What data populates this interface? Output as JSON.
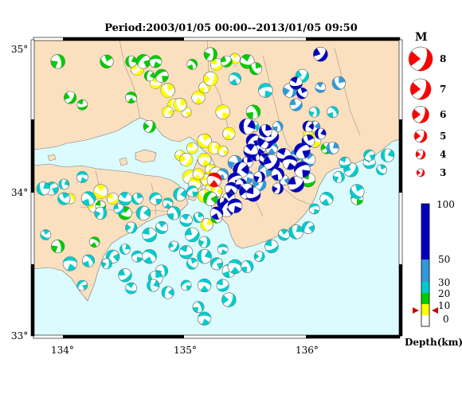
{
  "title": "Period:2003/01/05 00:00--2013/01/05 09:50",
  "axes": {
    "lat_labels": [
      "35°",
      "34°",
      "33°"
    ],
    "lon_labels": [
      "134°",
      "135°",
      "136°"
    ]
  },
  "magnitude_legend": {
    "title": "M",
    "items": [
      "8",
      "7",
      "6",
      "5",
      "4",
      "3"
    ]
  },
  "depth_scale": {
    "title": "Depth(km)",
    "ticks": [
      "100",
      "50",
      "30",
      "20",
      "10",
      "0"
    ]
  },
  "colors": {
    "sea": "#dcfbff",
    "land": "#fae0bf",
    "quake_red": "#ff0000",
    "depth_0_10": "#ffff00",
    "depth_10_20": "#00cc00",
    "depth_20_30": "#00cccc",
    "depth_30_50": "#2f9ad8",
    "depth_50_100": "#0000c0"
  },
  "chart_data": {
    "type": "scatter",
    "title": "Period:2003/01/05 00:00--2013/01/05 09:50",
    "xlim": [
      133.8,
      136.8
    ],
    "ylim": [
      33.0,
      35.05
    ],
    "series": [
      {
        "name": "0-10",
        "points": [
          [
            134.65,
            34.85
          ],
          [
            134.8,
            34.75
          ],
          [
            134.9,
            34.7
          ],
          [
            134.95,
            34.6
          ],
          [
            135.05,
            34.55
          ],
          [
            135.15,
            34.65
          ],
          [
            135.2,
            34.72
          ],
          [
            135.25,
            34.78
          ],
          [
            135.3,
            34.88
          ],
          [
            135.45,
            34.92
          ],
          [
            135.0,
            34.6
          ],
          [
            134.9,
            34.55
          ],
          [
            135.35,
            34.55
          ],
          [
            135.4,
            34.4
          ],
          [
            135.0,
            34.25
          ],
          [
            135.05,
            34.22
          ],
          [
            135.1,
            34.3
          ],
          [
            135.2,
            34.35
          ],
          [
            135.28,
            34.3
          ],
          [
            135.35,
            34.28
          ],
          [
            135.2,
            34.22
          ],
          [
            135.25,
            34.15
          ],
          [
            135.3,
            34.12
          ],
          [
            135.22,
            34.08
          ],
          [
            135.25,
            34.02
          ],
          [
            135.2,
            33.97
          ],
          [
            135.3,
            34.0
          ],
          [
            135.08,
            34.1
          ],
          [
            135.12,
            34.05
          ],
          [
            134.1,
            33.95
          ],
          [
            134.3,
            33.9
          ],
          [
            134.45,
            33.95
          ],
          [
            134.35,
            34.0
          ],
          [
            135.22,
            33.77
          ],
          [
            136.05,
            34.4
          ],
          [
            136.1,
            34.35
          ],
          [
            135.15,
            34.12
          ]
        ]
      },
      {
        "name": "10-20",
        "points": [
          [
            134.0,
            34.9
          ],
          [
            134.1,
            34.65
          ],
          [
            134.2,
            34.6
          ],
          [
            134.4,
            34.9
          ],
          [
            134.6,
            34.9
          ],
          [
            134.7,
            34.9
          ],
          [
            134.8,
            34.9
          ],
          [
            135.1,
            34.88
          ],
          [
            135.25,
            34.95
          ],
          [
            135.38,
            34.9
          ],
          [
            135.55,
            34.9
          ],
          [
            135.62,
            34.85
          ],
          [
            134.75,
            34.8
          ],
          [
            134.85,
            34.8
          ],
          [
            134.6,
            34.65
          ],
          [
            135.6,
            34.55
          ],
          [
            134.75,
            34.45
          ],
          [
            134.35,
            33.9
          ],
          [
            134.55,
            33.85
          ],
          [
            135.3,
            33.82
          ],
          [
            135.25,
            33.95
          ],
          [
            136.45,
            33.95
          ],
          [
            134.3,
            33.65
          ],
          [
            134.0,
            33.62
          ],
          [
            136.2,
            34.3
          ],
          [
            136.05,
            34.08
          ]
        ]
      },
      {
        "name": "20-30",
        "points": [
          [
            134.05,
            33.95
          ],
          [
            134.05,
            34.05
          ],
          [
            133.95,
            34.02
          ],
          [
            134.2,
            34.1
          ],
          [
            134.25,
            33.95
          ],
          [
            134.35,
            33.85
          ],
          [
            134.5,
            33.88
          ],
          [
            134.55,
            33.95
          ],
          [
            134.65,
            33.95
          ],
          [
            134.7,
            33.85
          ],
          [
            134.8,
            33.95
          ],
          [
            134.9,
            33.92
          ],
          [
            134.95,
            33.85
          ],
          [
            134.6,
            33.75
          ],
          [
            134.75,
            33.7
          ],
          [
            134.85,
            33.75
          ],
          [
            134.55,
            33.6
          ],
          [
            134.45,
            33.55
          ],
          [
            134.65,
            33.55
          ],
          [
            134.75,
            33.55
          ],
          [
            134.85,
            33.45
          ],
          [
            134.95,
            33.62
          ],
          [
            135.05,
            33.58
          ],
          [
            135.1,
            33.5
          ],
          [
            135.2,
            33.55
          ],
          [
            135.3,
            33.5
          ],
          [
            135.35,
            33.6
          ],
          [
            135.4,
            33.45
          ],
          [
            135.2,
            33.65
          ],
          [
            135.1,
            33.7
          ],
          [
            135.05,
            33.8
          ],
          [
            135.15,
            33.82
          ],
          [
            135.0,
            33.98
          ],
          [
            135.1,
            34.0
          ],
          [
            135.45,
            33.48
          ],
          [
            135.55,
            33.48
          ],
          [
            135.65,
            33.55
          ],
          [
            135.75,
            33.62
          ],
          [
            135.85,
            33.7
          ],
          [
            135.95,
            33.72
          ],
          [
            136.05,
            33.75
          ],
          [
            136.1,
            33.88
          ],
          [
            136.2,
            33.95
          ],
          [
            136.3,
            34.1
          ],
          [
            136.4,
            34.15
          ],
          [
            136.55,
            34.2
          ],
          [
            136.65,
            34.15
          ],
          [
            136.7,
            34.25
          ],
          [
            136.55,
            34.25
          ],
          [
            134.1,
            33.5
          ],
          [
            134.25,
            33.52
          ],
          [
            134.4,
            33.5
          ],
          [
            134.55,
            33.42
          ],
          [
            134.6,
            33.33
          ],
          [
            134.8,
            33.4
          ],
          [
            134.9,
            33.3
          ],
          [
            135.05,
            33.35
          ],
          [
            135.2,
            33.35
          ],
          [
            135.15,
            33.2
          ],
          [
            135.4,
            33.25
          ],
          [
            135.35,
            33.35
          ],
          [
            133.9,
            33.7
          ],
          [
            133.88,
            34.02
          ],
          [
            135.6,
            34.45
          ],
          [
            135.7,
            34.7
          ],
          [
            135.45,
            34.78
          ],
          [
            136.1,
            34.55
          ],
          [
            136.0,
            34.8
          ],
          [
            136.35,
            34.2
          ],
          [
            136.45,
            34.0
          ],
          [
            134.78,
            33.35
          ],
          [
            134.2,
            33.35
          ],
          [
            135.2,
            33.12
          ],
          [
            136.25,
            34.55
          ]
        ]
      },
      {
        "name": "30-50",
        "points": [
          [
            135.9,
            34.7
          ],
          [
            135.95,
            34.6
          ],
          [
            136.15,
            34.72
          ],
          [
            136.3,
            34.75
          ],
          [
            136.1,
            34.45
          ],
          [
            135.7,
            34.15
          ],
          [
            135.75,
            34.3
          ],
          [
            135.8,
            34.45
          ],
          [
            135.65,
            34.05
          ],
          [
            135.95,
            34.25
          ],
          [
            136.05,
            34.22
          ],
          [
            136.25,
            34.3
          ],
          [
            135.85,
            34.08
          ],
          [
            135.55,
            34.1
          ],
          [
            135.35,
            34.12
          ],
          [
            135.45,
            34.2
          ]
        ]
      },
      {
        "name": "50-100",
        "points": [
          [
            136.15,
            34.95
          ],
          [
            135.95,
            34.75
          ],
          [
            136.0,
            34.68
          ],
          [
            135.55,
            34.45
          ],
          [
            135.6,
            34.35
          ],
          [
            135.65,
            34.3
          ],
          [
            135.62,
            34.25
          ],
          [
            135.7,
            34.35
          ],
          [
            135.75,
            34.38
          ],
          [
            135.7,
            34.22
          ],
          [
            135.55,
            34.2
          ],
          [
            135.5,
            34.15
          ],
          [
            135.45,
            34.08
          ],
          [
            135.42,
            34.02
          ],
          [
            135.5,
            34.05
          ],
          [
            135.55,
            34.0
          ],
          [
            135.6,
            33.98
          ],
          [
            135.4,
            33.95
          ],
          [
            135.35,
            33.92
          ],
          [
            135.38,
            33.88
          ],
          [
            135.45,
            33.9
          ],
          [
            135.3,
            33.85
          ],
          [
            135.65,
            34.1
          ],
          [
            135.75,
            34.2
          ],
          [
            135.85,
            34.25
          ],
          [
            136.05,
            34.35
          ],
          [
            136.15,
            34.4
          ],
          [
            136.0,
            34.28
          ],
          [
            135.9,
            34.2
          ],
          [
            135.8,
            34.12
          ],
          [
            135.8,
            34.02
          ],
          [
            135.95,
            34.05
          ],
          [
            135.58,
            34.28
          ],
          [
            135.7,
            34.42
          ],
          [
            136.05,
            34.45
          ],
          [
            136.0,
            34.15
          ]
        ]
      },
      {
        "name": "M5 shallow (red)",
        "points": [
          [
            135.28,
            34.08
          ]
        ]
      }
    ]
  }
}
